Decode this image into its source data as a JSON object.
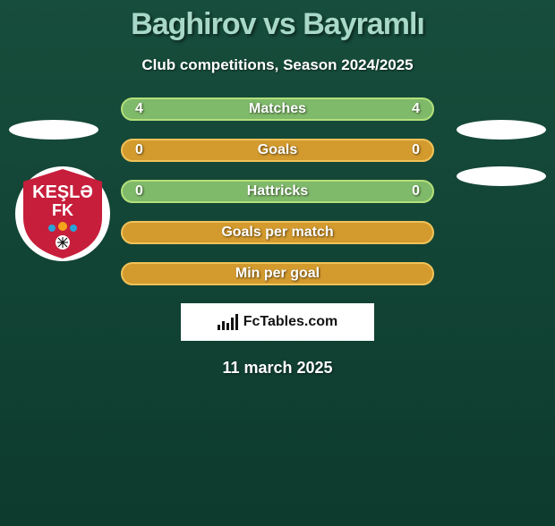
{
  "title": "Baghirov vs Bayramlı",
  "subtitle": "Club competitions, Season 2024/2025",
  "date": "11 march 2025",
  "logo_text": "FcTables.com",
  "crest": {
    "text_top": "KEŞLƏ",
    "text_bottom": "FK",
    "bg_color": "#c71e3b",
    "text_color": "#ffffff"
  },
  "colors": {
    "green_fill": "#7fb96a",
    "green_border": "#b3e07a",
    "orange_fill": "#d39a2e",
    "orange_border": "#f0c259"
  },
  "rows": [
    {
      "label": "Matches",
      "left": "4",
      "right": "4",
      "style": "green"
    },
    {
      "label": "Goals",
      "left": "0",
      "right": "0",
      "style": "orange"
    },
    {
      "label": "Hattricks",
      "left": "0",
      "right": "0",
      "style": "green"
    },
    {
      "label": "Goals per match",
      "left": "",
      "right": "",
      "style": "orange"
    },
    {
      "label": "Min per goal",
      "left": "",
      "right": "",
      "style": "orange"
    }
  ]
}
